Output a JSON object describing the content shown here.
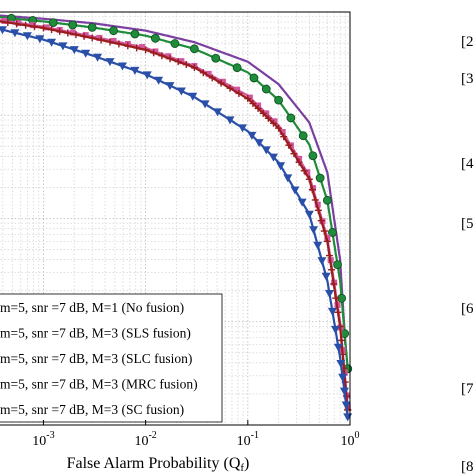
{
  "chart_data": {
    "type": "line",
    "title": "",
    "xlabel": "False Alarm Probability (Q",
    "xlabel_sub": "f",
    "xlabel_close": ")",
    "ylabel": "",
    "xscale": "log",
    "yscale": "log",
    "xlim": [
      0.0003,
      1
    ],
    "ylim": [
      0.0001,
      1
    ],
    "grid": true,
    "legend_placement": "bottom-left",
    "x_ticks": [
      {
        "value": 0.001,
        "base": "10",
        "exp": "-3"
      },
      {
        "value": 0.01,
        "base": "10",
        "exp": "-2"
      },
      {
        "value": 0.1,
        "base": "10",
        "exp": "-1"
      },
      {
        "value": 1,
        "base": "10",
        "exp": "0"
      }
    ],
    "series": [
      {
        "name": "m=5, snr =7 dB, M=1 (No fusion)",
        "color": "#7B3FA0",
        "marker": "none",
        "x": [
          0.0003,
          0.001,
          0.003,
          0.01,
          0.03,
          0.1,
          0.2,
          0.4,
          0.6,
          0.8,
          0.9
        ],
        "y": [
          0.94,
          0.86,
          0.78,
          0.66,
          0.51,
          0.33,
          0.2,
          0.085,
          0.028,
          0.004,
          0.0006
        ]
      },
      {
        "name": "m=5, snr =7 dB, M=3 (SLS fusion)",
        "color": "#1E8C3A",
        "marker": "circle",
        "x": [
          0.0003,
          0.001,
          0.003,
          0.01,
          0.03,
          0.1,
          0.2,
          0.4,
          0.6,
          0.8,
          0.95
        ],
        "y": [
          0.91,
          0.81,
          0.71,
          0.59,
          0.44,
          0.26,
          0.14,
          0.052,
          0.015,
          0.0025,
          0.00035
        ]
      },
      {
        "name": "m=5, snr =7 dB, M=3 (SLC fusion)",
        "color": "#D2569E",
        "marker": "square",
        "x": [
          0.0003,
          0.001,
          0.003,
          0.01,
          0.03,
          0.1,
          0.2,
          0.4,
          0.6,
          0.8,
          0.95
        ],
        "y": [
          0.86,
          0.72,
          0.58,
          0.45,
          0.3,
          0.155,
          0.08,
          0.026,
          0.0065,
          0.001,
          0.00015
        ]
      },
      {
        "name": "m=5, snr =7 dB, M=3 (MRC fusion)",
        "color": "#9A1C1C",
        "marker": "plus",
        "x": [
          0.0003,
          0.001,
          0.003,
          0.01,
          0.03,
          0.1,
          0.2,
          0.4,
          0.6,
          0.8,
          0.95
        ],
        "y": [
          0.84,
          0.7,
          0.56,
          0.43,
          0.29,
          0.145,
          0.075,
          0.024,
          0.006,
          0.0009,
          0.00014
        ]
      },
      {
        "name": "m=5, snr =7 dB, M=3 (SC fusion)",
        "color": "#2A4FA8",
        "marker": "triangle-down",
        "x": [
          0.0003,
          0.001,
          0.003,
          0.01,
          0.03,
          0.1,
          0.2,
          0.4,
          0.6,
          0.8,
          0.95
        ],
        "y": [
          0.72,
          0.54,
          0.38,
          0.25,
          0.15,
          0.07,
          0.035,
          0.011,
          0.0025,
          0.00045,
          0.00012
        ]
      }
    ],
    "side_refs": [
      "[2",
      "[3",
      "[4",
      "[5",
      "[6",
      "[7",
      "[8"
    ]
  }
}
